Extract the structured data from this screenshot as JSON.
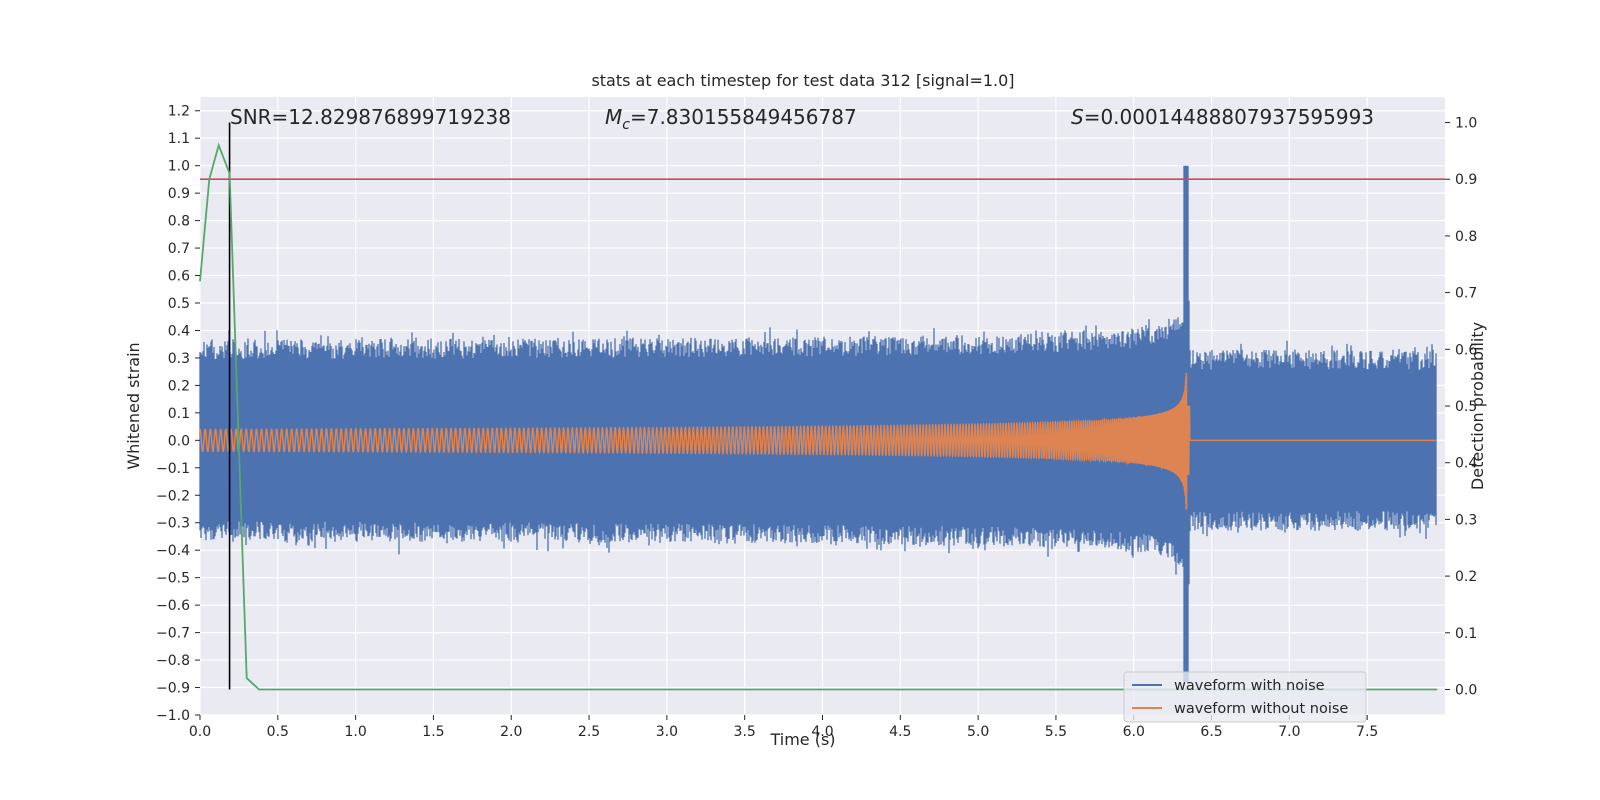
{
  "chart_data": {
    "type": "line",
    "title": "stats at each timestep for test data 312 [signal=1.0]",
    "xlabel": "Time (s)",
    "ylabel": "Whitened strain",
    "ylabel_right": "Detection probability",
    "xlim": [
      0.0,
      8.0
    ],
    "ylim": [
      -1.0,
      1.25
    ],
    "ylim_right": [
      -0.045,
      1.045
    ],
    "x_ticks": [
      "0.0",
      "0.5",
      "1.0",
      "1.5",
      "2.0",
      "2.5",
      "3.0",
      "3.5",
      "4.0",
      "4.5",
      "5.0",
      "5.5",
      "6.0",
      "6.5",
      "7.0",
      "7.5"
    ],
    "y_ticks": [
      "1.2",
      "1.1",
      "1.0",
      "0.9",
      "0.8",
      "0.7",
      "0.6",
      "0.5",
      "0.4",
      "0.3",
      "0.2",
      "0.1",
      "0.0",
      "−0.1",
      "−0.2",
      "−0.3",
      "−0.4",
      "−0.5",
      "−0.6",
      "−0.7",
      "−0.8",
      "−0.9",
      "−1.0"
    ],
    "y2_ticks": [
      "1.0",
      "0.9",
      "0.8",
      "0.7",
      "0.6",
      "0.5",
      "0.4",
      "0.3",
      "0.2",
      "0.1",
      "0.0"
    ],
    "grid": true,
    "legend_position": "lower-right",
    "annotations": {
      "snr": "SNR=12.829876899719238",
      "mc_symbol": "M",
      "mc_sub": "c",
      "mc_value": "=7.830155849456787",
      "s_symbol": "S",
      "s_value": "=0.00014488807937595993"
    },
    "merger_time": 6.34,
    "threshold_probability": 0.9,
    "detection_marker_time": 0.19,
    "series": [
      {
        "name": "waveform with noise",
        "color": "#4c72b0",
        "noise_amplitude": 0.33
      },
      {
        "name": "waveform without noise",
        "color": "#dd8452",
        "start_amplitude": 0.04,
        "peak_amplitude": 1.0
      },
      {
        "color": "#55a868",
        "axis": "right",
        "x": [
          0.0,
          0.06,
          0.12,
          0.19,
          0.3,
          0.38,
          0.5,
          1.0,
          2.0,
          3.0,
          4.0,
          5.0,
          6.0,
          7.0,
          7.95
        ],
        "values": [
          0.72,
          0.9,
          0.96,
          0.91,
          0.02,
          0.0,
          0.0,
          0.0,
          0.0,
          0.0,
          0.0,
          0.0,
          0.0,
          0.0,
          0.0
        ]
      }
    ],
    "colors": {
      "plot_background": "#eaeaf2",
      "grid": "#ffffff",
      "threshold_line": "#c44e52",
      "marker_line": "#000000"
    }
  }
}
